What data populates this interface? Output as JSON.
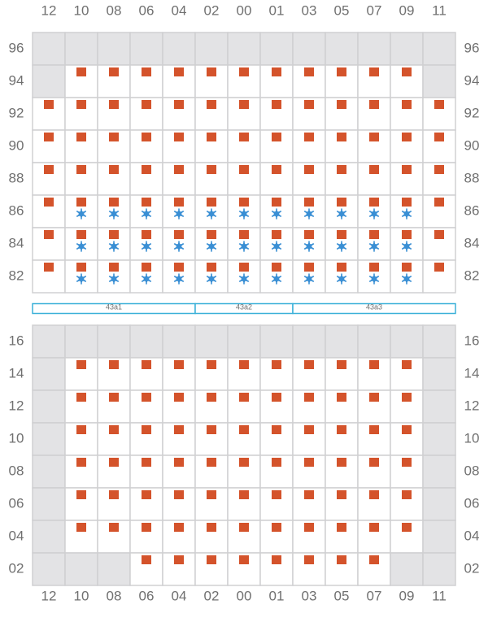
{
  "columns": [
    "12",
    "10",
    "08",
    "06",
    "04",
    "02",
    "00",
    "01",
    "03",
    "05",
    "07",
    "09",
    "11"
  ],
  "top_block": {
    "rows": [
      {
        "label": "96",
        "cells": [
          "blocked",
          "blocked",
          "blocked",
          "blocked",
          "blocked",
          "blocked",
          "blocked",
          "blocked",
          "blocked",
          "blocked",
          "blocked",
          "blocked",
          "blocked"
        ]
      },
      {
        "label": "94",
        "cells": [
          "blocked",
          "cargo",
          "cargo",
          "cargo",
          "cargo",
          "cargo",
          "cargo",
          "cargo",
          "cargo",
          "cargo",
          "cargo",
          "cargo",
          "blocked"
        ]
      },
      {
        "label": "92",
        "cells": [
          "cargo",
          "cargo",
          "cargo",
          "cargo",
          "cargo",
          "cargo",
          "cargo",
          "cargo",
          "cargo",
          "cargo",
          "cargo",
          "cargo",
          "cargo"
        ]
      },
      {
        "label": "90",
        "cells": [
          "cargo",
          "cargo",
          "cargo",
          "cargo",
          "cargo",
          "cargo",
          "cargo",
          "cargo",
          "cargo",
          "cargo",
          "cargo",
          "cargo",
          "cargo"
        ]
      },
      {
        "label": "88",
        "cells": [
          "cargo",
          "cargo",
          "cargo",
          "cargo",
          "cargo",
          "cargo",
          "cargo",
          "cargo",
          "cargo",
          "cargo",
          "cargo",
          "cargo",
          "cargo"
        ]
      },
      {
        "label": "86",
        "cells": [
          "cargo",
          "reefer",
          "reefer",
          "reefer",
          "reefer",
          "reefer",
          "reefer",
          "reefer",
          "reefer",
          "reefer",
          "reefer",
          "reefer",
          "cargo"
        ]
      },
      {
        "label": "84",
        "cells": [
          "cargo",
          "reefer",
          "reefer",
          "reefer",
          "reefer",
          "reefer",
          "reefer",
          "reefer",
          "reefer",
          "reefer",
          "reefer",
          "reefer",
          "cargo"
        ]
      },
      {
        "label": "82",
        "cells": [
          "cargo",
          "reefer",
          "reefer",
          "reefer",
          "reefer",
          "reefer",
          "reefer",
          "reefer",
          "reefer",
          "reefer",
          "reefer",
          "reefer",
          "cargo"
        ]
      }
    ]
  },
  "segments": [
    "43a1",
    "43a2",
    "43a3"
  ],
  "bottom_block": {
    "rows": [
      {
        "label": "16",
        "cells": [
          "blocked",
          "blocked",
          "blocked",
          "blocked",
          "blocked",
          "blocked",
          "blocked",
          "blocked",
          "blocked",
          "blocked",
          "blocked",
          "blocked",
          "blocked"
        ]
      },
      {
        "label": "14",
        "cells": [
          "blocked",
          "cargo",
          "cargo",
          "cargo",
          "cargo",
          "cargo",
          "cargo",
          "cargo",
          "cargo",
          "cargo",
          "cargo",
          "cargo",
          "blocked"
        ]
      },
      {
        "label": "12",
        "cells": [
          "blocked",
          "cargo",
          "cargo",
          "cargo",
          "cargo",
          "cargo",
          "cargo",
          "cargo",
          "cargo",
          "cargo",
          "cargo",
          "cargo",
          "blocked"
        ]
      },
      {
        "label": "10",
        "cells": [
          "blocked",
          "cargo",
          "cargo",
          "cargo",
          "cargo",
          "cargo",
          "cargo",
          "cargo",
          "cargo",
          "cargo",
          "cargo",
          "cargo",
          "blocked"
        ]
      },
      {
        "label": "08",
        "cells": [
          "blocked",
          "cargo",
          "cargo",
          "cargo",
          "cargo",
          "cargo",
          "cargo",
          "cargo",
          "cargo",
          "cargo",
          "cargo",
          "cargo",
          "blocked"
        ]
      },
      {
        "label": "06",
        "cells": [
          "blocked",
          "cargo",
          "cargo",
          "cargo",
          "cargo",
          "cargo",
          "cargo",
          "cargo",
          "cargo",
          "cargo",
          "cargo",
          "cargo",
          "blocked"
        ]
      },
      {
        "label": "04",
        "cells": [
          "blocked",
          "cargo",
          "cargo",
          "cargo",
          "cargo",
          "cargo",
          "cargo",
          "cargo",
          "cargo",
          "cargo",
          "cargo",
          "cargo",
          "blocked"
        ]
      },
      {
        "label": "02",
        "cells": [
          "blocked",
          "blocked",
          "blocked",
          "cargo",
          "cargo",
          "cargo",
          "cargo",
          "cargo",
          "cargo",
          "cargo",
          "cargo",
          "blocked",
          "blocked"
        ]
      }
    ]
  }
}
